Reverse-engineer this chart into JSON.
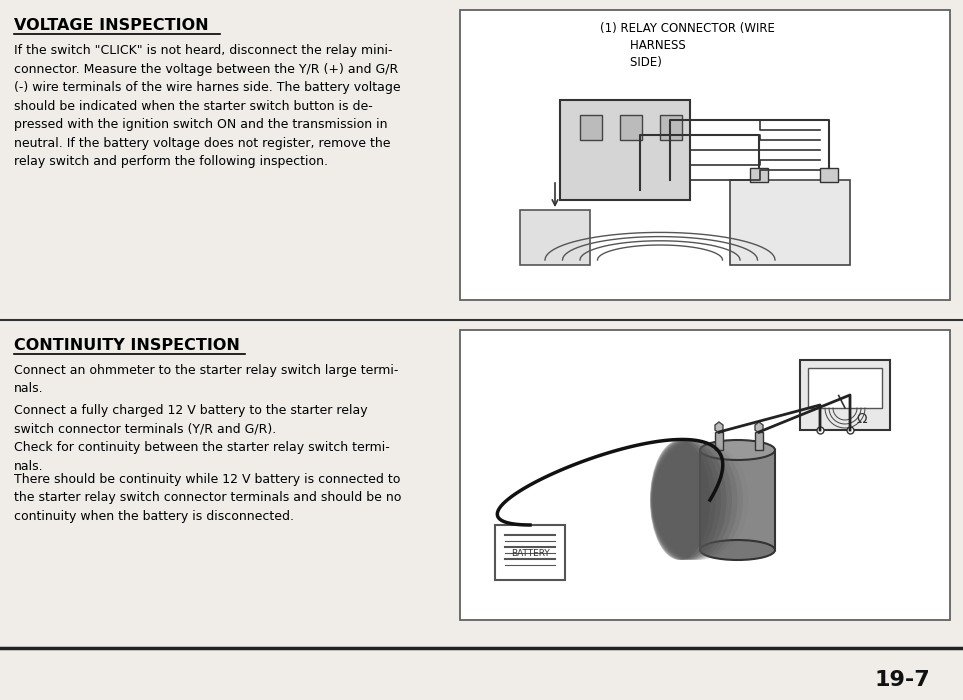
{
  "bg_color": "#f0ede8",
  "text_color": "#000000",
  "section1_title": "VOLTAGE INSPECTION",
  "section1_body": "If the switch \"CLICK\" is not heard, disconnect the relay mini-\nconnector. Measure the voltage between the Y/R (+) and G/R\n(-) wire terminals of the wire harnes side. The battery voltage\nshould be indicated when the starter switch button is de-\npressed with the ignition switch ON and the transmission in\nneutral. If the battery voltage does not register, remove the\nrelay switch and perform the following inspection.",
  "section2_title": "CONTINUITY INSPECTION",
  "section2_body1": "Connect an ohmmeter to the starter relay switch large termi-\nnals.",
  "section2_body2": "Connect a fully charged 12 V battery to the starter relay\nswitch connector terminals (Y/R and G/R).\nCheck for continuity between the starter relay switch termi-\nnals.",
  "section2_body3": "There should be continuity while 12 V battery is connected to\nthe starter relay switch connector terminals and should be no\ncontinuity when the battery is disconnected.",
  "diagram1_label": "(1) RELAY CONNECTOR (WIRE\n        HARNESS\n        SIDE)",
  "diagram2_label": "BATTERY",
  "page_number": "19-7",
  "divider_color": "#333333",
  "box_edge_color": "#555555",
  "title_fontsize": 11.5,
  "body_fontsize": 9.0,
  "page_num_fontsize": 16
}
